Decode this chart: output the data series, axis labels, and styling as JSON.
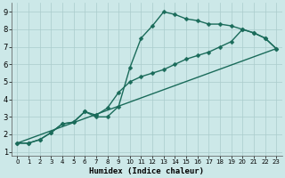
{
  "xlabel": "Humidex (Indice chaleur)",
  "background_color": "#cce8e8",
  "grid_color": "#aacccc",
  "line_color": "#1a6b5a",
  "xlim": [
    -0.5,
    23.5
  ],
  "ylim": [
    0.8,
    9.5
  ],
  "xticks": [
    0,
    1,
    2,
    3,
    4,
    5,
    6,
    7,
    8,
    9,
    10,
    11,
    12,
    13,
    14,
    15,
    16,
    17,
    18,
    19,
    20,
    21,
    22,
    23
  ],
  "yticks": [
    1,
    2,
    3,
    4,
    5,
    6,
    7,
    8,
    9
  ],
  "curve1_x": [
    0,
    1,
    2,
    3,
    4,
    5,
    6,
    7,
    8,
    9,
    10,
    11,
    12,
    13,
    14,
    15,
    16,
    17,
    18,
    19,
    20,
    21,
    22,
    23
  ],
  "curve1_y": [
    1.5,
    1.5,
    1.7,
    2.1,
    2.6,
    2.7,
    3.3,
    3.0,
    3.0,
    3.6,
    5.8,
    7.5,
    8.2,
    9.0,
    8.85,
    8.6,
    8.5,
    8.3,
    8.3,
    8.2,
    8.0,
    7.8,
    7.5,
    6.9
  ],
  "curve2_x": [
    0,
    1,
    2,
    3,
    4,
    5,
    6,
    7,
    8,
    9,
    10,
    11,
    12,
    13,
    14,
    15,
    16,
    17,
    18,
    19,
    20,
    21,
    22,
    23
  ],
  "curve2_y": [
    1.5,
    1.5,
    1.7,
    2.1,
    2.6,
    2.7,
    3.3,
    3.1,
    3.5,
    4.4,
    5.0,
    5.3,
    5.5,
    5.7,
    6.0,
    6.3,
    6.5,
    6.7,
    7.0,
    7.3,
    8.0,
    7.8,
    7.5,
    6.9
  ],
  "curve3_x": [
    0,
    23
  ],
  "curve3_y": [
    1.5,
    6.9
  ],
  "markersize": 2.5,
  "linewidth": 1.0
}
